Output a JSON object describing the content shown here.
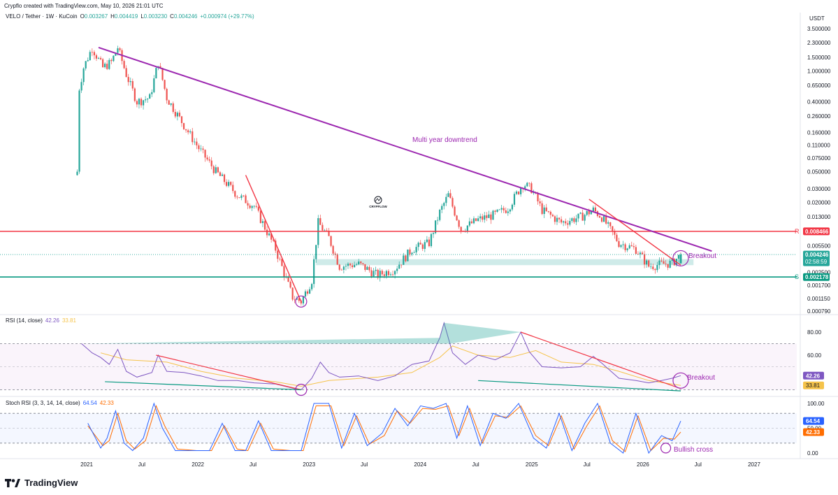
{
  "header": {
    "created_by": "Crypflo created with TradingView.com, May 10, 2026 21:01 UTC",
    "symbol": "VELO / Tether · 1W · KuCoin",
    "ohlc": [
      {
        "k": "O",
        "v": "0.003267"
      },
      {
        "k": "H",
        "v": "0.004419"
      },
      {
        "k": "L",
        "v": "0.003230"
      },
      {
        "k": "C",
        "v": "0.004246"
      }
    ],
    "change": "+0.000974 (+29.77%)"
  },
  "price_axis": {
    "currency": "USDT",
    "ticks": [
      "3.500000",
      "2.300000",
      "1.500000",
      "1.000000",
      "0.650000",
      "0.400000",
      "0.260000",
      "0.160000",
      "0.110000",
      "0.075000",
      "0.050000",
      "0.030000",
      "0.020000",
      "0.013000",
      "0.005500",
      "0.002500",
      "0.001700",
      "0.001150",
      "0.000790"
    ],
    "resistance_label": "0.008466",
    "current_price_label": "0.004246",
    "countdown": "02:58:59",
    "support_label": "0.002178",
    "r_marker": "R",
    "s_marker": "S"
  },
  "time_axis": {
    "labels": [
      "2021",
      "Jul",
      "2022",
      "Jul",
      "2023",
      "Jul",
      "2024",
      "Jul",
      "2025",
      "Jul",
      "2026",
      "Jul",
      "2027"
    ]
  },
  "annotations": {
    "downtrend": "Multi year downtrend",
    "breakout_price": "Breakout",
    "breakout_rsi": "Breakout",
    "bullish_cross": "Bullish cross",
    "watermark": "CRYPFLOW"
  },
  "rsi": {
    "title": "RSI (14, close)",
    "value": "42.26",
    "ma_value": "33.81",
    "ticks": [
      "80.00",
      "60.00"
    ]
  },
  "stoch": {
    "title": "Stoch RSI (3, 3, 14, 14, close)",
    "k_value": "64.54",
    "d_value": "42.33",
    "ticks": [
      "100.00",
      "50.00",
      "0.00"
    ]
  },
  "branding": "TradingView",
  "colors": {
    "up": "#26a69a",
    "down": "#ef5350",
    "trendline": "#9c27b0",
    "resistance": "#f23645",
    "support": "#089981",
    "rsi_line": "#7e57c2",
    "rsi_ma": "#f5c34a",
    "stoch_k": "#2962ff",
    "stoch_d": "#ff6d00"
  },
  "chart_data": {
    "type": "candlestick",
    "symbol": "VELO / Tether",
    "timeframe": "1W",
    "exchange": "KuCoin",
    "scale": "log",
    "ylim": [
      0.00079,
      3.5
    ],
    "xlim": [
      "2020-11",
      "2027-03"
    ],
    "price_path": [
      [
        "2020-12-01",
        0.05
      ],
      [
        "2020-12-08",
        0.6
      ],
      [
        "2020-12-22",
        1.1
      ],
      [
        "2021-01-19",
        2.0
      ],
      [
        "2021-02-23",
        1.1
      ],
      [
        "2021-03-23",
        1.3
      ],
      [
        "2021-04-13",
        2.0
      ],
      [
        "2021-05-11",
        0.9
      ],
      [
        "2021-06-15",
        0.4
      ],
      [
        "2021-07-27",
        0.45
      ],
      [
        "2021-08-24",
        1.3
      ],
      [
        "2021-09-21",
        0.45
      ],
      [
        "2021-11-09",
        0.22
      ],
      [
        "2022-01-04",
        0.1
      ],
      [
        "2022-03-01",
        0.05
      ],
      [
        "2022-05-10",
        0.025
      ],
      [
        "2022-07-05",
        0.018
      ],
      [
        "2022-09-13",
        0.005
      ],
      [
        "2022-11-08",
        0.0012
      ],
      [
        "2022-12-06",
        0.00105
      ],
      [
        "2023-01-10",
        0.002
      ],
      [
        "2023-01-31",
        0.011
      ],
      [
        "2023-03-07",
        0.007
      ],
      [
        "2023-04-11",
        0.003
      ],
      [
        "2023-06-13",
        0.0032
      ],
      [
        "2023-08-15",
        0.0023
      ],
      [
        "2023-10-10",
        0.0028
      ],
      [
        "2023-12-05",
        0.005
      ],
      [
        "2024-01-30",
        0.006
      ],
      [
        "2024-03-05",
        0.015
      ],
      [
        "2024-04-02",
        0.025
      ],
      [
        "2024-05-14",
        0.009
      ],
      [
        "2024-07-09",
        0.012
      ],
      [
        "2024-09-03",
        0.014
      ],
      [
        "2024-10-15",
        0.017
      ],
      [
        "2024-12-03",
        0.035
      ],
      [
        "2024-12-31",
        0.03
      ],
      [
        "2025-02-04",
        0.016
      ],
      [
        "2025-04-08",
        0.011
      ],
      [
        "2025-06-10",
        0.013
      ],
      [
        "2025-07-22",
        0.016
      ],
      [
        "2025-08-19",
        0.013
      ],
      [
        "2025-10-14",
        0.006
      ],
      [
        "2025-12-09",
        0.005
      ],
      [
        "2026-01-20",
        0.003
      ],
      [
        "2026-03-03",
        0.0032
      ],
      [
        "2026-04-07",
        0.0033
      ],
      [
        "2026-05-05",
        0.004246
      ]
    ],
    "last_candle": {
      "open": 0.003267,
      "high": 0.004419,
      "low": 0.00323,
      "close": 0.004246,
      "change": 0.000974,
      "change_pct": 29.77
    },
    "levels": {
      "resistance": 0.008466,
      "support": 0.002178,
      "demand_zone": [
        0.0031,
        0.0037
      ]
    },
    "trendlines": [
      {
        "name": "Multi year downtrend",
        "from": [
          "2021-02-09",
          2.0
        ],
        "to": [
          "2026-08-15",
          0.0047
        ]
      },
      {
        "from": [
          "2022-06-07",
          0.045
        ],
        "to": [
          "2022-12-06",
          0.00105
        ]
      },
      {
        "from": [
          "2025-07-08",
          0.022
        ],
        "to": [
          "2026-05-05",
          0.0031
        ]
      }
    ],
    "rsi": {
      "length": 14,
      "last": 42.26,
      "ma_last": 33.81,
      "ylim": [
        20,
        90
      ],
      "bands": [
        70,
        30
      ],
      "path": [
        [
          "2020-12-15",
          70
        ],
        [
          "2021-01-19",
          62
        ],
        [
          "2021-02-16",
          58
        ],
        [
          "2021-03-16",
          52
        ],
        [
          "2021-04-13",
          65
        ],
        [
          "2021-05-11",
          46
        ],
        [
          "2021-06-15",
          41
        ],
        [
          "2021-08-03",
          45
        ],
        [
          "2021-08-24",
          60
        ],
        [
          "2021-09-21",
          46
        ],
        [
          "2021-11-16",
          45
        ],
        [
          "2022-01-11",
          42
        ],
        [
          "2022-03-08",
          38
        ],
        [
          "2022-05-10",
          38
        ],
        [
          "2022-07-05",
          36
        ],
        [
          "2022-09-13",
          35
        ],
        [
          "2022-11-15",
          31
        ],
        [
          "2022-12-06",
          30
        ],
        [
          "2023-01-10",
          40
        ],
        [
          "2023-02-07",
          54
        ],
        [
          "2023-03-07",
          45
        ],
        [
          "2023-04-11",
          41
        ],
        [
          "2023-06-13",
          42
        ],
        [
          "2023-08-15",
          38
        ],
        [
          "2023-10-10",
          42
        ],
        [
          "2023-12-05",
          52
        ],
        [
          "2024-01-30",
          55
        ],
        [
          "2024-03-05",
          75
        ],
        [
          "2024-03-19",
          88
        ],
        [
          "2024-04-16",
          62
        ],
        [
          "2024-05-28",
          52
        ],
        [
          "2024-07-09",
          60
        ],
        [
          "2024-09-03",
          56
        ],
        [
          "2024-10-22",
          62
        ],
        [
          "2024-11-26",
          80
        ],
        [
          "2024-12-24",
          63
        ],
        [
          "2025-02-04",
          50
        ],
        [
          "2025-04-08",
          49
        ],
        [
          "2025-06-10",
          50
        ],
        [
          "2025-07-22",
          59
        ],
        [
          "2025-08-19",
          53
        ],
        [
          "2025-10-14",
          40
        ],
        [
          "2025-12-09",
          38
        ],
        [
          "2026-01-20",
          36
        ],
        [
          "2026-03-03",
          38
        ],
        [
          "2026-04-07",
          40
        ],
        [
          "2026-05-05",
          42.26
        ]
      ],
      "ma_path": [
        [
          "2021-02-16",
          62
        ],
        [
          "2021-05-11",
          56
        ],
        [
          "2021-09-21",
          54
        ],
        [
          "2022-01-11",
          46
        ],
        [
          "2022-05-10",
          40
        ],
        [
          "2022-09-13",
          37
        ],
        [
          "2022-12-06",
          33
        ],
        [
          "2023-03-07",
          38
        ],
        [
          "2023-08-15",
          41
        ],
        [
          "2023-12-05",
          45
        ],
        [
          "2024-03-05",
          58
        ],
        [
          "2024-04-16",
          68
        ],
        [
          "2024-07-09",
          60
        ],
        [
          "2024-10-22",
          58
        ],
        [
          "2025-01-14",
          64
        ],
        [
          "2025-04-08",
          54
        ],
        [
          "2025-07-22",
          52
        ],
        [
          "2025-10-14",
          46
        ],
        [
          "2026-01-20",
          38
        ],
        [
          "2026-05-05",
          33.81
        ]
      ],
      "trendlines": [
        {
          "from": [
            "2021-08-17",
            60
          ],
          "to": [
            "2022-12-06",
            30
          ]
        },
        {
          "from": [
            "2021-03-02",
            37
          ],
          "to": [
            "2022-12-06",
            30
          ]
        },
        {
          "from": [
            "2024-11-26",
            80
          ],
          "to": [
            "2026-05-05",
            31
          ]
        },
        {
          "from": [
            "2024-07-09",
            38
          ],
          "to": [
            "2026-05-05",
            29
          ]
        }
      ]
    },
    "stoch_rsi": {
      "params": [
        3,
        3,
        14,
        14
      ],
      "k_last": 64.54,
      "d_last": 42.33,
      "ylim": [
        0,
        100
      ],
      "bands": [
        80,
        20
      ],
      "k_path": [
        [
          "2021-01-05",
          60
        ],
        [
          "2021-02-16",
          10
        ],
        [
          "2021-03-09",
          30
        ],
        [
          "2021-04-06",
          85
        ],
        [
          "2021-05-04",
          20
        ],
        [
          "2021-06-01",
          5
        ],
        [
          "2021-07-06",
          30
        ],
        [
          "2021-08-10",
          100
        ],
        [
          "2021-09-07",
          50
        ],
        [
          "2021-10-19",
          5
        ],
        [
          "2021-12-21",
          5
        ],
        [
          "2022-02-08",
          5
        ],
        [
          "2022-03-22",
          60
        ],
        [
          "2022-05-03",
          5
        ],
        [
          "2022-06-07",
          5
        ],
        [
          "2022-07-19",
          65
        ],
        [
          "2022-08-30",
          5
        ],
        [
          "2022-10-25",
          5
        ],
        [
          "2022-12-06",
          5
        ],
        [
          "2023-01-17",
          100
        ],
        [
          "2023-03-07",
          100
        ],
        [
          "2023-04-18",
          10
        ],
        [
          "2023-05-30",
          80
        ],
        [
          "2023-07-11",
          15
        ],
        [
          "2023-08-29",
          40
        ],
        [
          "2023-10-10",
          90
        ],
        [
          "2023-11-21",
          55
        ],
        [
          "2024-01-02",
          95
        ],
        [
          "2024-02-13",
          90
        ],
        [
          "2024-03-26",
          100
        ],
        [
          "2024-04-30",
          30
        ],
        [
          "2024-06-04",
          95
        ],
        [
          "2024-07-16",
          15
        ],
        [
          "2024-08-27",
          80
        ],
        [
          "2024-10-08",
          70
        ],
        [
          "2024-11-19",
          100
        ],
        [
          "2025-01-07",
          30
        ],
        [
          "2025-02-18",
          10
        ],
        [
          "2025-04-01",
          80
        ],
        [
          "2025-05-13",
          5
        ],
        [
          "2025-06-24",
          60
        ],
        [
          "2025-08-05",
          100
        ],
        [
          "2025-09-16",
          20
        ],
        [
          "2025-10-28",
          0
        ],
        [
          "2025-12-09",
          80
        ],
        [
          "2026-01-20",
          0
        ],
        [
          "2026-03-03",
          35
        ],
        [
          "2026-04-07",
          25
        ],
        [
          "2026-05-05",
          64.54
        ]
      ],
      "d_path": [
        [
          "2021-01-05",
          55
        ],
        [
          "2021-02-23",
          15
        ],
        [
          "2021-03-16",
          25
        ],
        [
          "2021-04-13",
          80
        ],
        [
          "2021-05-11",
          25
        ],
        [
          "2021-06-08",
          8
        ],
        [
          "2021-07-13",
          25
        ],
        [
          "2021-08-17",
          95
        ],
        [
          "2021-09-14",
          55
        ],
        [
          "2021-10-26",
          8
        ],
        [
          "2021-12-28",
          5
        ],
        [
          "2022-02-15",
          5
        ],
        [
          "2022-03-29",
          55
        ],
        [
          "2022-05-10",
          8
        ],
        [
          "2022-06-14",
          5
        ],
        [
          "2022-07-26",
          60
        ],
        [
          "2022-09-06",
          8
        ],
        [
          "2022-11-01",
          5
        ],
        [
          "2022-12-13",
          5
        ],
        [
          "2023-01-24",
          95
        ],
        [
          "2023-03-14",
          95
        ],
        [
          "2023-04-25",
          15
        ],
        [
          "2023-06-06",
          75
        ],
        [
          "2023-07-18",
          18
        ],
        [
          "2023-09-05",
          35
        ],
        [
          "2023-10-17",
          85
        ],
        [
          "2023-11-28",
          60
        ],
        [
          "2024-01-09",
          90
        ],
        [
          "2024-02-20",
          88
        ],
        [
          "2024-04-02",
          95
        ],
        [
          "2024-05-07",
          35
        ],
        [
          "2024-06-11",
          90
        ],
        [
          "2024-07-23",
          20
        ],
        [
          "2024-09-03",
          75
        ],
        [
          "2024-10-15",
          72
        ],
        [
          "2024-11-26",
          95
        ],
        [
          "2025-01-14",
          35
        ],
        [
          "2025-02-25",
          15
        ],
        [
          "2025-04-08",
          75
        ],
        [
          "2025-05-20",
          8
        ],
        [
          "2025-07-01",
          55
        ],
        [
          "2025-08-12",
          95
        ],
        [
          "2025-09-23",
          25
        ],
        [
          "2025-11-04",
          3
        ],
        [
          "2025-12-16",
          75
        ],
        [
          "2026-01-27",
          5
        ],
        [
          "2026-03-10",
          30
        ],
        [
          "2026-04-14",
          28
        ],
        [
          "2026-05-05",
          42.33
        ]
      ]
    }
  }
}
